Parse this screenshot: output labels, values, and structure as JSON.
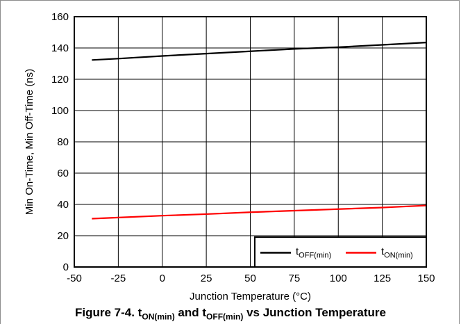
{
  "chart_data": {
    "type": "line",
    "title": "",
    "xlabel": "Junction Temperature (°C)",
    "ylabel": "Min On-Time, Min Off-Time (ns)",
    "xlim": [
      -50,
      150
    ],
    "ylim": [
      0,
      160
    ],
    "xticks": [
      -50,
      -25,
      0,
      25,
      50,
      75,
      100,
      125,
      150
    ],
    "yticks": [
      0,
      20,
      40,
      60,
      80,
      100,
      120,
      140,
      160
    ],
    "grid": true,
    "legend_position": "bottom-right",
    "series": [
      {
        "name": "tOFF(min)",
        "name_main": "t",
        "name_sub": "OFF(min)",
        "color": "#000000",
        "x": [
          -40,
          -25,
          0,
          25,
          50,
          75,
          100,
          125,
          150
        ],
        "y": [
          132.3,
          133.2,
          134.9,
          136.4,
          137.9,
          139.4,
          140.5,
          142.0,
          143.5
        ]
      },
      {
        "name": "tON(min)",
        "name_main": "t",
        "name_sub": "ON(min)",
        "color": "#ff0000",
        "x": [
          -40,
          -25,
          0,
          25,
          50,
          75,
          100,
          125,
          150
        ],
        "y": [
          30.9,
          31.6,
          32.8,
          33.8,
          35.0,
          36.0,
          37.0,
          38.0,
          39.3
        ]
      }
    ]
  },
  "caption": {
    "prefix": "Figure 7-4. t",
    "sub1": "ON(min)",
    "mid": " and t",
    "sub2": "OFF(min)",
    "suffix": " vs Junction Temperature"
  }
}
